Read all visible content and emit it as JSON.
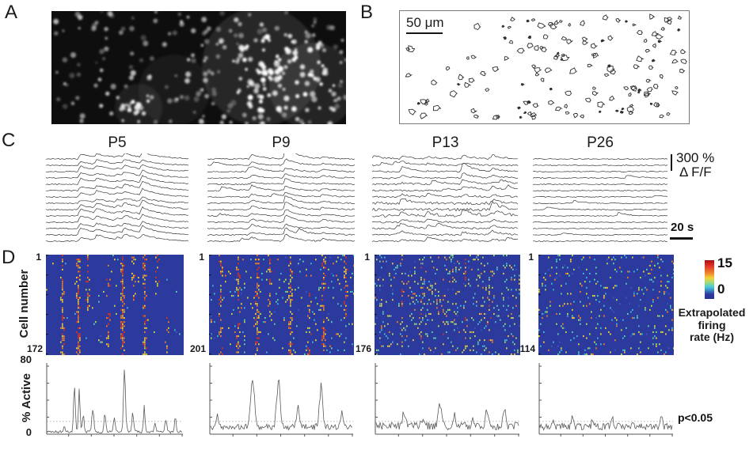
{
  "panels": {
    "a": {
      "label": "A"
    },
    "b": {
      "label": "B",
      "scale_bar_label": "50 μm"
    },
    "c": {
      "label": "C",
      "conditions": [
        "P5",
        "P9",
        "P13",
        "P26"
      ],
      "amplitude_scale": "300 %",
      "amplitude_unit": "Δ F/F",
      "time_scale": "20 s"
    },
    "d": {
      "label": "D",
      "y_axis_label": "Cell number",
      "first_cell_label": "1",
      "cell_counts": [
        "172",
        "201",
        "176",
        "114"
      ],
      "colorbar": {
        "max_label": "15",
        "min_label": "0",
        "title_lines": [
          "Extrapolated",
          "firing",
          "rate (Hz)"
        ]
      },
      "active_plots": {
        "y_axis_label": "% Active",
        "y_max_label": "80",
        "y_min_label": "0",
        "threshold_label": "p<0.05"
      }
    }
  },
  "chart_data": [
    {
      "type": "heatmap",
      "title": "Extrapolated firing rate per cell over time",
      "conditions": [
        "P5",
        "P9",
        "P13",
        "P26"
      ],
      "rows_per_condition": [
        172,
        201,
        176,
        114
      ],
      "row_axis_label": "Cell number",
      "row_axis_first": 1,
      "colorbar_label": "Extrapolated firing rate (Hz)",
      "colorbar_range": [
        0,
        15
      ],
      "colormap": "jet",
      "legend_position": "right",
      "notes": "P5 and P9 show synchronized vertical activity bands; P13 diffuse dense activity; P26 sparse desynchronized activity"
    },
    {
      "type": "line",
      "title": "% Active cells over time",
      "conditions": [
        "P5",
        "P9",
        "P13",
        "P26"
      ],
      "ylabel": "% Active",
      "ylim": [
        0,
        80
      ],
      "threshold_value": 15,
      "threshold_label": "p<0.05",
      "grid": false,
      "notes": "P5/P9 show large synchronous peaks (50-70%); P13 moderate fluctuations; P26 stays near significance threshold"
    },
    {
      "type": "line",
      "title": "Calcium fluorescence traces",
      "conditions": [
        "P5",
        "P9",
        "P13",
        "P26"
      ],
      "traces_per_condition": 14,
      "amplitude_scale_percent_dFF": 300,
      "time_scale_seconds": 20,
      "notes": "P5: synchronized transients across cells; P9: fewer synchronized events; P13: mixed; P26: mostly flat"
    }
  ]
}
